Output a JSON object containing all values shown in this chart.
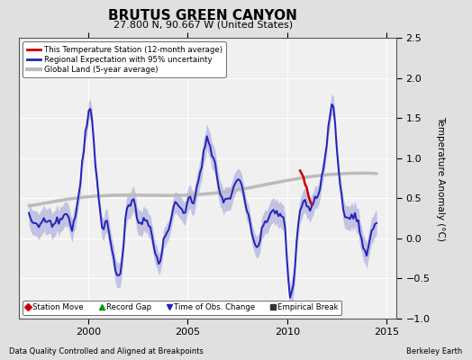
{
  "title": "BRUTUS GREEN CANYON",
  "subtitle": "27.800 N, 90.667 W (United States)",
  "ylabel": "Temperature Anomaly (°C)",
  "footer_left": "Data Quality Controlled and Aligned at Breakpoints",
  "footer_right": "Berkeley Earth",
  "xlim": [
    1996.5,
    2015.5
  ],
  "ylim": [
    -1.0,
    2.5
  ],
  "yticks": [
    -1,
    -0.5,
    0,
    0.5,
    1,
    1.5,
    2,
    2.5
  ],
  "xticks": [
    2000,
    2005,
    2010,
    2015
  ],
  "bg_color": "#e0e0e0",
  "plot_bg": "#f0f0f0",
  "regional_color": "#2222bb",
  "band_color": "#aaaadd",
  "station_color": "#cc0000",
  "global_color": "#bbbbbb",
  "legend1_items": [
    {
      "label": "This Temperature Station (12-month average)",
      "color": "#cc0000",
      "lw": 2
    },
    {
      "label": "Regional Expectation with 95% uncertainty",
      "color": "#2222bb",
      "lw": 2
    },
    {
      "label": "Global Land (5-year average)",
      "color": "#bbbbbb",
      "lw": 3
    }
  ],
  "legend2_items": [
    {
      "label": "Station Move",
      "marker": "D",
      "color": "#cc0000"
    },
    {
      "label": "Record Gap",
      "marker": "^",
      "color": "#009900"
    },
    {
      "label": "Time of Obs. Change",
      "marker": "v",
      "color": "#2222bb"
    },
    {
      "label": "Empirical Break",
      "marker": "s",
      "color": "#333333"
    }
  ]
}
